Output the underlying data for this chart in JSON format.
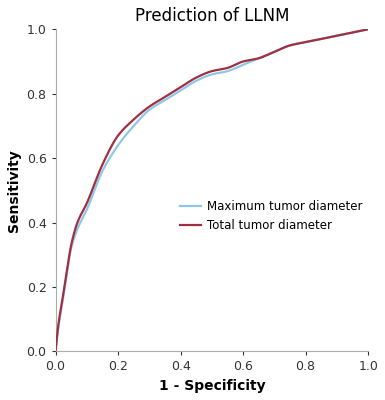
{
  "title": "Prediction of LLNM",
  "xlabel": "1 - Specificity",
  "ylabel": "Sensitivity",
  "xlim": [
    0.0,
    1.0
  ],
  "ylim": [
    0.0,
    1.0
  ],
  "xticks": [
    0.0,
    0.2,
    0.4,
    0.6,
    0.8,
    1.0
  ],
  "yticks": [
    0.0,
    0.2,
    0.4,
    0.6,
    0.8,
    1.0
  ],
  "line1_color": "#8EC8E8",
  "line2_color": "#A03040",
  "line1_label": "Maximum tumor diameter",
  "line2_label": "Total tumor diameter",
  "line_width": 1.6,
  "background_color": "#ffffff",
  "title_fontsize": 12,
  "label_fontsize": 10,
  "tick_fontsize": 9,
  "legend_fontsize": 8.5,
  "spine_color": "#aaaaaa",
  "key_points_max": [
    [
      0.0,
      0.0
    ],
    [
      0.01,
      0.08
    ],
    [
      0.02,
      0.14
    ],
    [
      0.03,
      0.2
    ],
    [
      0.05,
      0.32
    ],
    [
      0.07,
      0.38
    ],
    [
      0.1,
      0.44
    ],
    [
      0.15,
      0.56
    ],
    [
      0.2,
      0.64
    ],
    [
      0.25,
      0.7
    ],
    [
      0.3,
      0.75
    ],
    [
      0.35,
      0.78
    ],
    [
      0.4,
      0.81
    ],
    [
      0.45,
      0.84
    ],
    [
      0.5,
      0.86
    ],
    [
      0.55,
      0.87
    ],
    [
      0.6,
      0.89
    ],
    [
      0.65,
      0.91
    ],
    [
      0.7,
      0.93
    ],
    [
      0.75,
      0.95
    ],
    [
      0.8,
      0.96
    ],
    [
      0.85,
      0.97
    ],
    [
      0.9,
      0.98
    ],
    [
      0.95,
      0.99
    ],
    [
      1.0,
      1.0
    ]
  ],
  "key_points_total": [
    [
      0.0,
      0.0
    ],
    [
      0.01,
      0.09
    ],
    [
      0.02,
      0.15
    ],
    [
      0.03,
      0.21
    ],
    [
      0.05,
      0.33
    ],
    [
      0.07,
      0.4
    ],
    [
      0.1,
      0.46
    ],
    [
      0.15,
      0.58
    ],
    [
      0.2,
      0.67
    ],
    [
      0.25,
      0.72
    ],
    [
      0.3,
      0.76
    ],
    [
      0.35,
      0.79
    ],
    [
      0.4,
      0.82
    ],
    [
      0.45,
      0.85
    ],
    [
      0.5,
      0.87
    ],
    [
      0.55,
      0.88
    ],
    [
      0.6,
      0.9
    ],
    [
      0.65,
      0.91
    ],
    [
      0.7,
      0.93
    ],
    [
      0.75,
      0.95
    ],
    [
      0.8,
      0.96
    ],
    [
      0.85,
      0.97
    ],
    [
      0.9,
      0.98
    ],
    [
      0.95,
      0.99
    ],
    [
      1.0,
      1.0
    ]
  ]
}
